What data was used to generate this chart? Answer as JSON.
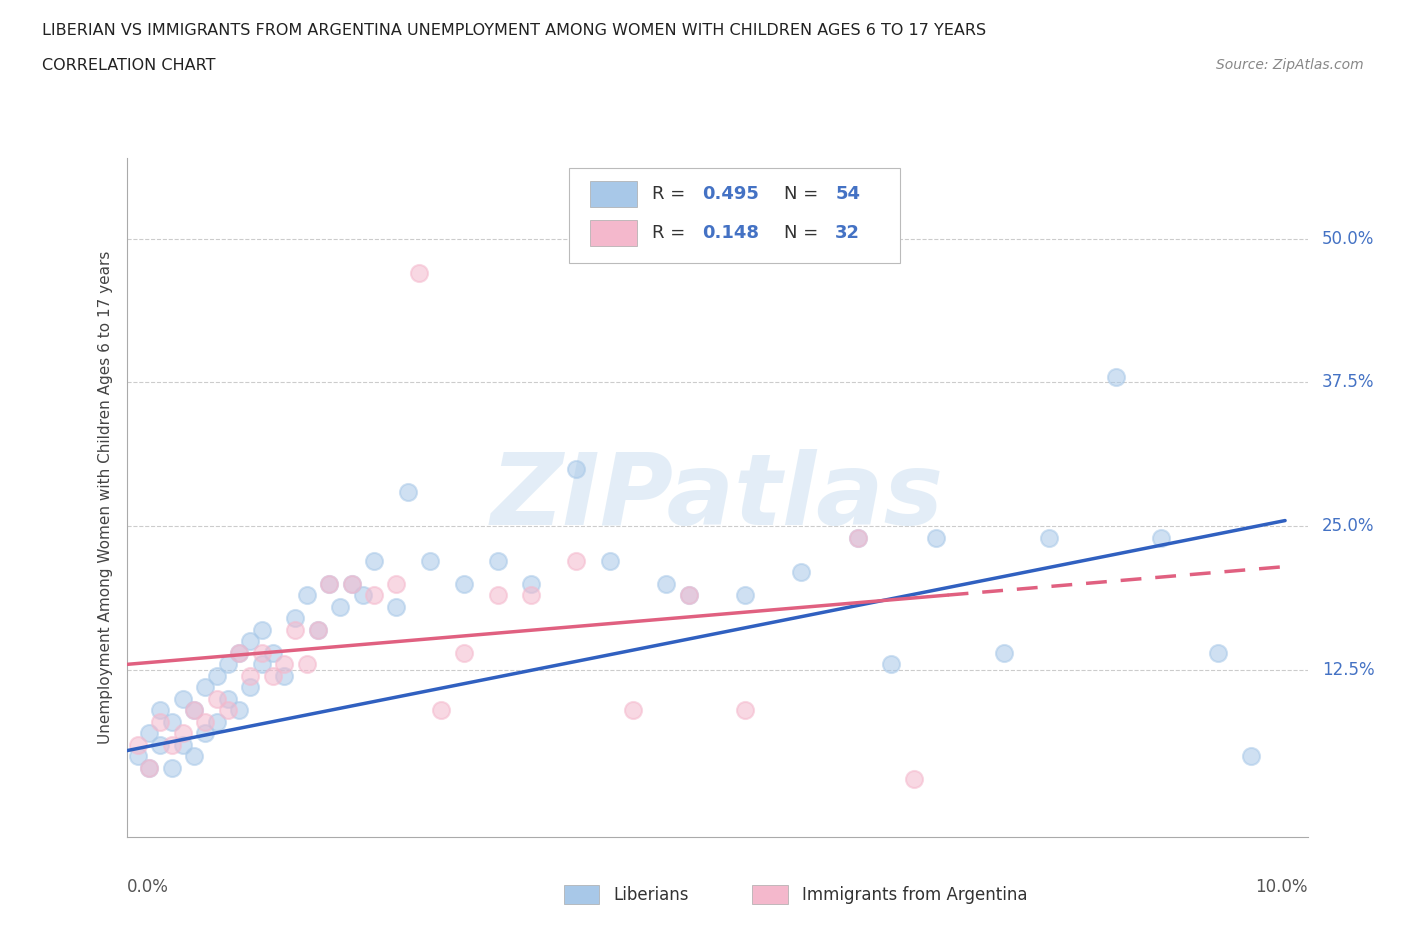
{
  "title": "LIBERIAN VS IMMIGRANTS FROM ARGENTINA UNEMPLOYMENT AMONG WOMEN WITH CHILDREN AGES 6 TO 17 YEARS",
  "subtitle": "CORRELATION CHART",
  "source": "Source: ZipAtlas.com",
  "xlabel_min": "0.0%",
  "xlabel_max": "10.0%",
  "xlim": [
    0.0,
    0.105
  ],
  "ylim": [
    -0.02,
    0.57
  ],
  "blue_scatter_x": [
    0.001,
    0.002,
    0.002,
    0.003,
    0.003,
    0.004,
    0.004,
    0.005,
    0.005,
    0.006,
    0.006,
    0.007,
    0.007,
    0.008,
    0.008,
    0.009,
    0.009,
    0.01,
    0.01,
    0.011,
    0.011,
    0.012,
    0.012,
    0.013,
    0.014,
    0.015,
    0.016,
    0.017,
    0.018,
    0.019,
    0.02,
    0.021,
    0.022,
    0.024,
    0.025,
    0.027,
    0.03,
    0.033,
    0.036,
    0.04,
    0.043,
    0.048,
    0.05,
    0.055,
    0.06,
    0.065,
    0.068,
    0.072,
    0.078,
    0.082,
    0.088,
    0.092,
    0.097,
    0.1
  ],
  "blue_scatter_y": [
    0.05,
    0.07,
    0.04,
    0.09,
    0.06,
    0.08,
    0.04,
    0.1,
    0.06,
    0.09,
    0.05,
    0.11,
    0.07,
    0.12,
    0.08,
    0.13,
    0.1,
    0.14,
    0.09,
    0.15,
    0.11,
    0.13,
    0.16,
    0.14,
    0.12,
    0.17,
    0.19,
    0.16,
    0.2,
    0.18,
    0.2,
    0.19,
    0.22,
    0.18,
    0.28,
    0.22,
    0.2,
    0.22,
    0.2,
    0.3,
    0.22,
    0.2,
    0.19,
    0.19,
    0.21,
    0.24,
    0.13,
    0.24,
    0.14,
    0.24,
    0.38,
    0.24,
    0.14,
    0.05
  ],
  "pink_scatter_x": [
    0.001,
    0.002,
    0.003,
    0.004,
    0.005,
    0.006,
    0.007,
    0.008,
    0.009,
    0.01,
    0.011,
    0.012,
    0.013,
    0.014,
    0.015,
    0.016,
    0.017,
    0.018,
    0.02,
    0.022,
    0.024,
    0.026,
    0.028,
    0.03,
    0.033,
    0.036,
    0.04,
    0.045,
    0.05,
    0.055,
    0.065,
    0.07
  ],
  "pink_scatter_y": [
    0.06,
    0.04,
    0.08,
    0.06,
    0.07,
    0.09,
    0.08,
    0.1,
    0.09,
    0.14,
    0.12,
    0.14,
    0.12,
    0.13,
    0.16,
    0.13,
    0.16,
    0.2,
    0.2,
    0.19,
    0.2,
    0.47,
    0.09,
    0.14,
    0.19,
    0.19,
    0.22,
    0.09,
    0.19,
    0.09,
    0.24,
    0.03
  ],
  "blue_line_x": [
    0.0,
    0.103
  ],
  "blue_line_y": [
    0.055,
    0.255
  ],
  "pink_line_x": [
    0.0,
    0.103
  ],
  "pink_line_y": [
    0.13,
    0.215
  ],
  "blue_color": "#a8c8e8",
  "pink_color": "#f4b8cc",
  "blue_line_color": "#3060c0",
  "pink_line_color": "#e06080",
  "pink_line_solid_end": 0.073,
  "watermark": "ZIPatlas",
  "ytick_vals": [
    0.125,
    0.25,
    0.375,
    0.5
  ],
  "ytick_labels": [
    "12.5%",
    "25.0%",
    "37.5%",
    "50.0%"
  ]
}
